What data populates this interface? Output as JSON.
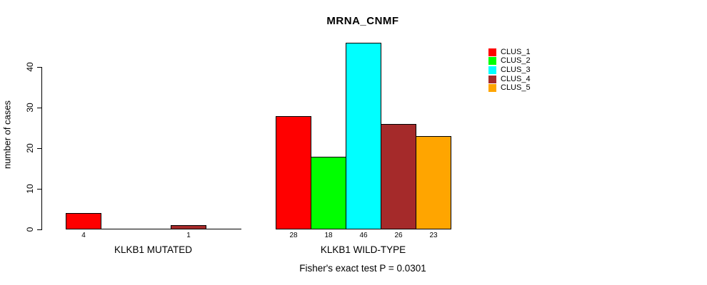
{
  "chart_data": {
    "type": "bar",
    "title": "MRNA_CNMF",
    "ylabel": "number of cases",
    "yticks": [
      0,
      10,
      20,
      30,
      40
    ],
    "ylim": [
      0,
      46
    ],
    "grid": false,
    "legend_position": "right-inside",
    "categories": [
      "KLKB1 MUTATED",
      "KLKB1 WILD-TYPE"
    ],
    "series": [
      {
        "name": "CLUS_1",
        "color": "#FF0000",
        "values": [
          4,
          28
        ]
      },
      {
        "name": "CLUS_2",
        "color": "#00FF00",
        "values": [
          0,
          18
        ]
      },
      {
        "name": "CLUS_3",
        "color": "#00FFFF",
        "values": [
          0,
          46
        ]
      },
      {
        "name": "CLUS_4",
        "color": "#A52A2A",
        "values": [
          1,
          26
        ]
      },
      {
        "name": "CLUS_5",
        "color": "#FFA500",
        "values": [
          0,
          23
        ]
      }
    ],
    "bar_value_labels": "shown under each bar when value > 0",
    "annotation": "Fisher's exact test P = 0.0301"
  },
  "legend": {
    "items": [
      {
        "label": "CLUS_1",
        "color": "#FF0000"
      },
      {
        "label": "CLUS_2",
        "color": "#00FF00"
      },
      {
        "label": "CLUS_3",
        "color": "#00FFFF"
      },
      {
        "label": "CLUS_4",
        "color": "#A52A2A"
      },
      {
        "label": "CLUS_5",
        "color": "#FFA500"
      }
    ]
  }
}
